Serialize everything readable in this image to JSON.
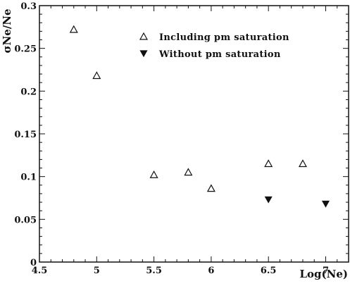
{
  "chart_data": {
    "type": "scatter",
    "title": "",
    "xlabel": "Log(Ne)",
    "ylabel": "σNe/Ne",
    "xlim": [
      4.5,
      7.2
    ],
    "ylim": [
      0,
      0.3
    ],
    "x_ticks": [
      "4.5",
      "5",
      "5.5",
      "6",
      "6.5",
      "7"
    ],
    "y_ticks": [
      "0",
      "0.05",
      "0.1",
      "0.15",
      "0.2",
      "0.25",
      "0.3"
    ],
    "grid": false,
    "legend_position": "top-right",
    "series": [
      {
        "name": "Including pm saturation",
        "marker": "triangle-up-open",
        "color": "#111111",
        "points": [
          {
            "x": 4.8,
            "y": 0.272
          },
          {
            "x": 5.0,
            "y": 0.218
          },
          {
            "x": 5.5,
            "y": 0.102
          },
          {
            "x": 5.8,
            "y": 0.105
          },
          {
            "x": 6.0,
            "y": 0.086
          },
          {
            "x": 6.5,
            "y": 0.115
          },
          {
            "x": 6.8,
            "y": 0.115
          }
        ]
      },
      {
        "name": "Without pm saturation",
        "marker": "triangle-down-filled",
        "color": "#111111",
        "points": [
          {
            "x": 6.5,
            "y": 0.073
          },
          {
            "x": 7.0,
            "y": 0.068
          }
        ]
      }
    ]
  }
}
